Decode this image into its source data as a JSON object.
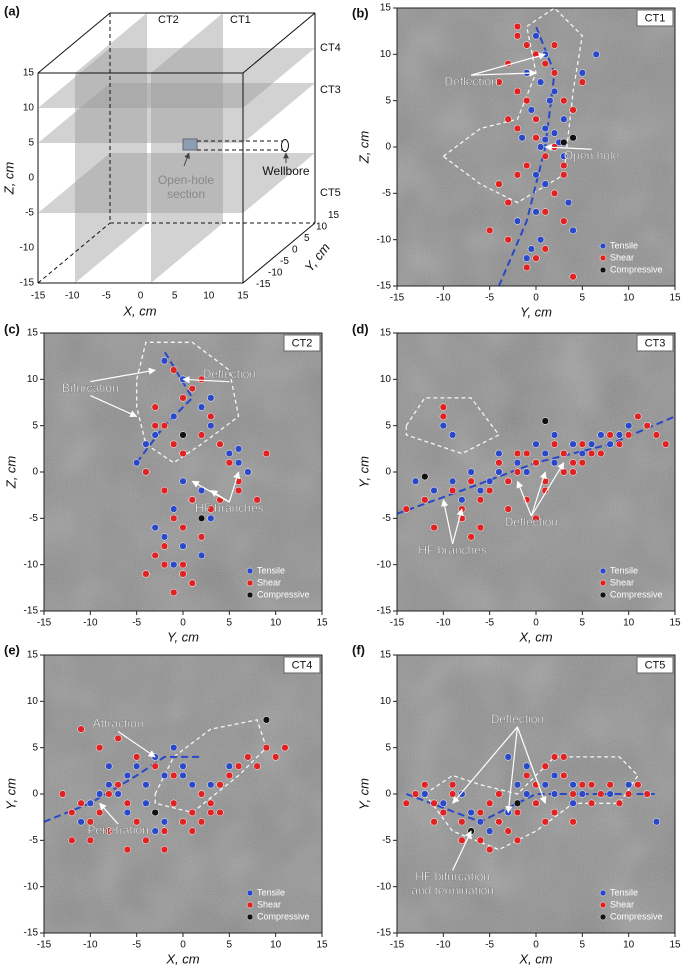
{
  "schematic": {
    "label": "(a)",
    "plane_labels": [
      "CT2",
      "CT1",
      "CT4",
      "CT3",
      "CT5"
    ],
    "open_hole_label": [
      "Open-hole",
      "section"
    ],
    "wellbore_label": "Wellbore",
    "xlabel": "X, cm",
    "ylabel": "Y, cm",
    "zlabel": "Z, cm",
    "xticks": [
      -15,
      -10,
      -5,
      0,
      5,
      10,
      15
    ],
    "yticks": [
      -15,
      -10,
      -5,
      0,
      5,
      10,
      15
    ],
    "zticks": [
      -15,
      -10,
      -5,
      0,
      5,
      10,
      15
    ]
  },
  "chart_data": [
    {
      "type": "scatter",
      "panel": "(b)",
      "tag": "CT1",
      "xlabel": "Y, cm",
      "ylabel": "Z, cm",
      "xlim": [
        -15,
        15
      ],
      "ylim": [
        -15,
        15
      ],
      "xticks": [
        -15,
        -10,
        -5,
        0,
        5,
        10,
        15
      ],
      "yticks": [
        -15,
        -10,
        -5,
        0,
        5,
        10,
        15
      ],
      "annotations": [
        [
          "Deflection"
        ],
        [
          "Open hole"
        ]
      ],
      "series": [
        {
          "name": "Tensile",
          "color": "#2a48c8",
          "x": [
            0,
            1,
            -1,
            0.5,
            2,
            1.5,
            -0.5,
            0,
            1,
            -1.5,
            0.5,
            2.5,
            3,
            -1,
            0,
            1,
            2,
            3.5,
            -2,
            4,
            0.5,
            -0.5,
            1,
            2,
            3,
            5,
            6.5,
            0,
            -1
          ],
          "values": [
            12,
            10,
            8,
            7,
            6,
            5,
            4,
            3,
            2,
            1,
            0,
            0.5,
            -1,
            -2,
            -3,
            -4,
            -5,
            -6,
            -8,
            -9,
            -10,
            -11,
            0.8,
            1.5,
            3,
            8,
            10,
            -7,
            -12
          ]
        },
        {
          "name": "Shear",
          "color": "#e02222",
          "x": [
            -2,
            -3,
            -1,
            0,
            1,
            2,
            -4,
            -2,
            -1,
            3,
            4,
            -3,
            -2,
            0,
            2,
            1,
            -1,
            -2,
            3,
            -4,
            2,
            -3,
            1,
            3,
            -5,
            -3,
            0,
            4,
            5,
            2,
            -1,
            1,
            0,
            3,
            -2
          ],
          "values": [
            12,
            9,
            11,
            10,
            9,
            8,
            7,
            6,
            5,
            5,
            4,
            3,
            2,
            1,
            0,
            -1,
            -2,
            -3,
            -3,
            -4,
            -5,
            -6,
            -7,
            -8,
            -9,
            -10,
            -12,
            -14,
            7,
            11,
            -13,
            -11,
            3,
            -2,
            13
          ]
        },
        {
          "name": "Compressive",
          "color": "#111111",
          "x": [
            3,
            4
          ],
          "values": [
            0.5,
            1
          ]
        }
      ]
    },
    {
      "type": "scatter",
      "panel": "(c)",
      "tag": "CT2",
      "xlabel": "Y, cm",
      "ylabel": "Z, cm",
      "xlim": [
        -15,
        15
      ],
      "ylim": [
        -15,
        15
      ],
      "xticks": [
        -15,
        -10,
        -5,
        0,
        5,
        10,
        15
      ],
      "yticks": [
        -15,
        -10,
        -5,
        0,
        5,
        10,
        15
      ],
      "annotations": [
        [
          "Bifurcation"
        ],
        [
          "Deflection"
        ],
        [
          "HF branches"
        ]
      ],
      "series": [
        {
          "name": "Tensile",
          "color": "#2a48c8",
          "x": [
            -2,
            0,
            1,
            2,
            -1,
            3,
            -3,
            4,
            5,
            6,
            7,
            0,
            -5,
            2,
            1,
            -1,
            3,
            -2,
            0,
            2,
            6,
            -1,
            1,
            3,
            -3,
            -4
          ],
          "values": [
            12,
            10,
            9,
            7,
            6,
            5,
            4,
            3,
            2,
            1,
            0,
            -1,
            1,
            -2,
            -3,
            -4,
            -5,
            -7,
            -8,
            -9,
            2.5,
            -10,
            -12,
            8,
            -6,
            3
          ]
        },
        {
          "name": "Shear",
          "color": "#e02222",
          "x": [
            -1,
            0,
            1,
            2,
            3,
            -2,
            -3,
            -1,
            0,
            2,
            4,
            5,
            6,
            -4,
            -2,
            1,
            3,
            -1,
            0,
            2,
            4,
            6,
            8,
            9,
            -3,
            -2,
            0,
            1,
            -1,
            -4,
            -2,
            0,
            1,
            -3
          ],
          "values": [
            11,
            8,
            9,
            10,
            6,
            5,
            7,
            3,
            2,
            4,
            3,
            1,
            -1,
            0,
            -2,
            -3,
            -4,
            -5,
            -6,
            -7,
            -3,
            -2,
            -3,
            2,
            -9,
            -10,
            -11,
            -12,
            -13,
            -11,
            -8,
            -10,
            -12,
            5
          ]
        },
        {
          "name": "Compressive",
          "color": "#111111",
          "x": [
            0,
            2
          ],
          "values": [
            4,
            -5
          ]
        }
      ]
    },
    {
      "type": "scatter",
      "panel": "(d)",
      "tag": "CT3",
      "xlabel": "X, cm",
      "ylabel": "Y, cm",
      "xlim": [
        -15,
        15
      ],
      "ylim": [
        -15,
        15
      ],
      "xticks": [
        -15,
        -10,
        -5,
        0,
        5,
        10,
        15
      ],
      "yticks": [
        -15,
        -10,
        -5,
        0,
        5,
        10,
        15
      ],
      "annotations": [
        [
          "Deflection"
        ],
        [
          "HF branches"
        ]
      ],
      "series": [
        {
          "name": "Tensile",
          "color": "#2a48c8",
          "x": [
            -13,
            -11,
            -9,
            -8,
            -6,
            -5,
            -4,
            -3,
            -2,
            -1,
            0,
            1,
            2,
            3,
            4,
            5,
            6,
            7,
            8,
            9,
            10,
            -7,
            -4,
            0,
            2,
            12,
            -10,
            -9
          ],
          "values": [
            -1,
            -2,
            -1,
            -3,
            -2,
            -1,
            0,
            -1,
            1,
            0,
            1,
            2,
            1,
            2,
            3,
            2,
            3,
            4,
            3,
            4,
            5,
            0,
            2,
            3,
            4,
            5,
            5,
            4
          ]
        },
        {
          "name": "Shear",
          "color": "#e02222",
          "x": [
            -14,
            -12,
            -10,
            -9,
            -8,
            -7,
            -6,
            -5,
            -4,
            -3,
            -2,
            -1,
            0,
            1,
            2,
            3,
            4,
            5,
            6,
            7,
            8,
            9,
            10,
            11,
            12,
            13,
            14,
            -11,
            -8,
            -6,
            -3,
            -1,
            1,
            3,
            5,
            -10,
            -7,
            -2,
            0,
            4
          ],
          "values": [
            -4,
            -3,
            7,
            -2,
            -4,
            -1,
            -3,
            -2,
            1,
            -1,
            0,
            2,
            1,
            -1,
            3,
            2,
            1,
            3,
            2,
            2,
            4,
            3,
            4,
            6,
            5,
            4,
            3,
            -6,
            -5,
            -6,
            -4,
            -3,
            -2,
            0,
            1,
            6,
            -7,
            2,
            -5,
            0
          ]
        },
        {
          "name": "Compressive",
          "color": "#111111",
          "x": [
            -12,
            1
          ],
          "values": [
            -0.5,
            5.5
          ]
        }
      ]
    },
    {
      "type": "scatter",
      "panel": "(e)",
      "tag": "CT4",
      "xlabel": "X, cm",
      "ylabel": "Y, cm",
      "xlim": [
        -15,
        15
      ],
      "ylim": [
        -15,
        15
      ],
      "xticks": [
        -15,
        -10,
        -5,
        0,
        5,
        10,
        15
      ],
      "yticks": [
        -15,
        -10,
        -5,
        0,
        5,
        10,
        15
      ],
      "annotations": [
        [
          "Attraction"
        ],
        [
          "Penetration"
        ]
      ],
      "series": [
        {
          "name": "Tensile",
          "color": "#2a48c8",
          "x": [
            -12,
            -10,
            -9,
            -8,
            -7,
            -6,
            -5,
            -4,
            -3,
            -2,
            -1,
            0,
            1,
            2,
            -11,
            -6,
            -4,
            -2,
            0,
            3,
            5,
            -8,
            -3
          ],
          "values": [
            -2,
            -1,
            0,
            1,
            0,
            2,
            3,
            1,
            4,
            2,
            5,
            3,
            1,
            0,
            -3,
            -2,
            -1,
            -3,
            2,
            1,
            3,
            3,
            -4
          ]
        },
        {
          "name": "Shear",
          "color": "#e02222",
          "x": [
            -13,
            -12,
            -11,
            -10,
            -9,
            -8,
            -7,
            -6,
            -5,
            -4,
            -3,
            -2,
            -1,
            0,
            1,
            2,
            3,
            4,
            5,
            6,
            7,
            8,
            9,
            10,
            11,
            -11,
            -9,
            -7,
            -5,
            -3,
            -1,
            1,
            3,
            -10,
            -6,
            -2,
            2,
            4,
            -12,
            -8
          ],
          "values": [
            0,
            -2,
            -1,
            -3,
            -2,
            0,
            1,
            -1,
            -3,
            -5,
            -2,
            -4,
            -1,
            -3,
            -2,
            0,
            -1,
            1,
            2,
            3,
            4,
            3,
            5,
            4,
            5,
            7,
            5,
            6,
            4,
            3,
            2,
            -4,
            -2,
            -5,
            -6,
            -6,
            -3,
            -2,
            -5,
            -4
          ]
        },
        {
          "name": "Compressive",
          "color": "#111111",
          "x": [
            -3,
            9
          ],
          "values": [
            -2,
            8
          ]
        }
      ]
    },
    {
      "type": "scatter",
      "panel": "(f)",
      "tag": "CT5",
      "xlabel": "X, cm",
      "ylabel": "Y, cm",
      "xlim": [
        -15,
        15
      ],
      "ylim": [
        -15,
        15
      ],
      "xticks": [
        -15,
        -10,
        -5,
        0,
        5,
        10,
        15
      ],
      "yticks": [
        -15,
        -10,
        -5,
        0,
        5,
        10,
        15
      ],
      "annotations": [
        [
          "Deflection"
        ],
        [
          "HF bifurcation",
          "and termination"
        ]
      ],
      "series": [
        {
          "name": "Tensile",
          "color": "#2a48c8",
          "x": [
            -12,
            -10,
            -8,
            -7,
            -6,
            -5,
            -4,
            -3,
            -2,
            -1,
            0,
            1,
            2,
            3,
            4,
            5,
            6,
            8,
            10,
            12,
            -3,
            -1,
            2,
            4,
            13
          ],
          "values": [
            0,
            -1,
            0,
            -2,
            -3,
            -4,
            -3,
            -2,
            1,
            0,
            -1,
            1,
            0,
            2,
            1,
            0,
            1,
            0,
            1,
            0,
            4,
            3,
            2,
            -1,
            -3
          ]
        },
        {
          "name": "Shear",
          "color": "#e02222",
          "x": [
            -14,
            -13,
            -12,
            -11,
            -10,
            -9,
            -8,
            -7,
            -6,
            -5,
            -4,
            -3,
            -2,
            -1,
            0,
            1,
            2,
            3,
            4,
            5,
            6,
            7,
            8,
            9,
            10,
            11,
            12,
            -8,
            -6,
            -4,
            -2,
            0,
            2,
            4,
            -11,
            -5,
            1,
            3,
            6,
            -9
          ],
          "values": [
            -1,
            0,
            1,
            -1,
            -2,
            1,
            -3,
            -4,
            -2,
            -1,
            0,
            -4,
            -2,
            2,
            1,
            3,
            4,
            2,
            0,
            1,
            -1,
            0,
            1,
            -1,
            0,
            1,
            0,
            -5,
            -5,
            -3,
            -5,
            -1,
            -2,
            -3,
            -3,
            -6,
            -3,
            4,
            1,
            0
          ]
        },
        {
          "name": "Compressive",
          "color": "#111111",
          "x": [
            -2,
            -7
          ],
          "values": [
            -1,
            -4
          ]
        }
      ]
    }
  ]
}
